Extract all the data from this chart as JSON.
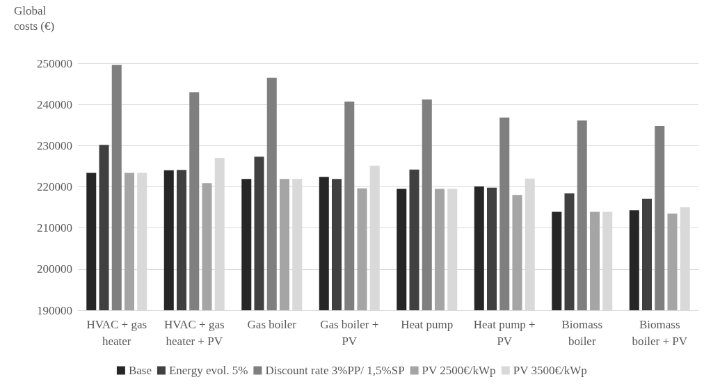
{
  "chart_data": {
    "type": "bar",
    "ylabel": "Global costs (€)",
    "categories": [
      "HVAC + gas heater",
      "HVAC + gas heater + PV",
      "Gas boiler",
      "Gas boiler + PV",
      "Heat pump",
      "Heat pump + PV",
      "Biomass boiler",
      "Biomass boiler + PV"
    ],
    "series": [
      {
        "name": "Base",
        "color": "#262626",
        "values": [
          223400,
          224000,
          221900,
          222400,
          219500,
          220100,
          213900,
          214300
        ]
      },
      {
        "name": "Energy evol. 5%",
        "color": "#404040",
        "values": [
          230200,
          224100,
          227300,
          221900,
          224200,
          219800,
          218400,
          217100
        ]
      },
      {
        "name": "Discount rate 3%PP/ 1,5%SP",
        "color": "#7f7f7f",
        "values": [
          249600,
          243000,
          246500,
          240700,
          241200,
          236800,
          236100,
          234800
        ]
      },
      {
        "name": "PV 2500€/kWp",
        "color": "#a5a5a5",
        "values": [
          223400,
          220900,
          221900,
          219600,
          219500,
          218000,
          213900,
          213500
        ]
      },
      {
        "name": "PV 3500€/kWp",
        "color": "#d9d9d9",
        "values": [
          223400,
          227000,
          221900,
          225100,
          219500,
          222000,
          213900,
          215000
        ]
      }
    ],
    "ylim": [
      190000,
      250000
    ],
    "yticks": [
      190000,
      200000,
      210000,
      220000,
      230000,
      240000,
      250000
    ],
    "grid": "y",
    "legend": "bottom"
  }
}
